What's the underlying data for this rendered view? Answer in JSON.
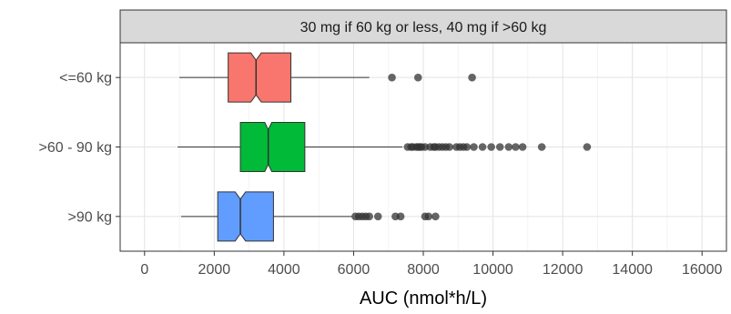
{
  "chart_data": {
    "type": "boxplot",
    "orientation": "horizontal",
    "facet_label": "30 mg if 60 kg or less, 40 mg if >60 kg",
    "xlabel": "AUC (nmol*h/L)",
    "ylabel": "",
    "xlim": [
      -700,
      16700
    ],
    "xticks": [
      0,
      2000,
      4000,
      6000,
      8000,
      10000,
      12000,
      14000,
      16000
    ],
    "xtick_labels": [
      "0",
      "2000",
      "4000",
      "6000",
      "8000",
      "10000",
      "12000",
      "14000",
      "16000"
    ],
    "grid": true,
    "notched": true,
    "categories": [
      "<=60 kg",
      ">60 - 90 kg",
      ">90 kg"
    ],
    "series": [
      {
        "category": "<=60 kg",
        "color": "#F8766D",
        "whisker_low": 1000,
        "q1": 2400,
        "median": 3200,
        "q3": 4200,
        "whisker_high": 6450,
        "notch_low": 3050,
        "notch_high": 3350,
        "outliers": [
          7100,
          7850,
          9400
        ]
      },
      {
        "category": ">60 - 90 kg",
        "color": "#00BA38",
        "whisker_low": 950,
        "q1": 2750,
        "median": 3550,
        "q3": 4600,
        "whisker_high": 7400,
        "notch_low": 3450,
        "notch_high": 3650,
        "outliers": [
          7550,
          7650,
          7700,
          7800,
          7850,
          7900,
          7950,
          8050,
          8200,
          8300,
          8350,
          8450,
          8550,
          8650,
          8750,
          8950,
          9050,
          9150,
          9250,
          9450,
          9700,
          9950,
          10200,
          10450,
          10650,
          10850,
          11400,
          12700
        ]
      },
      {
        "category": ">90 kg",
        "color": "#619CFF",
        "whisker_low": 1050,
        "q1": 2100,
        "median": 2750,
        "q3": 3700,
        "whisker_high": 5950,
        "notch_low": 2600,
        "notch_high": 2900,
        "outliers": [
          6050,
          6150,
          6250,
          6350,
          6450,
          6700,
          7200,
          7350,
          8050,
          8150,
          8350
        ]
      }
    ]
  }
}
